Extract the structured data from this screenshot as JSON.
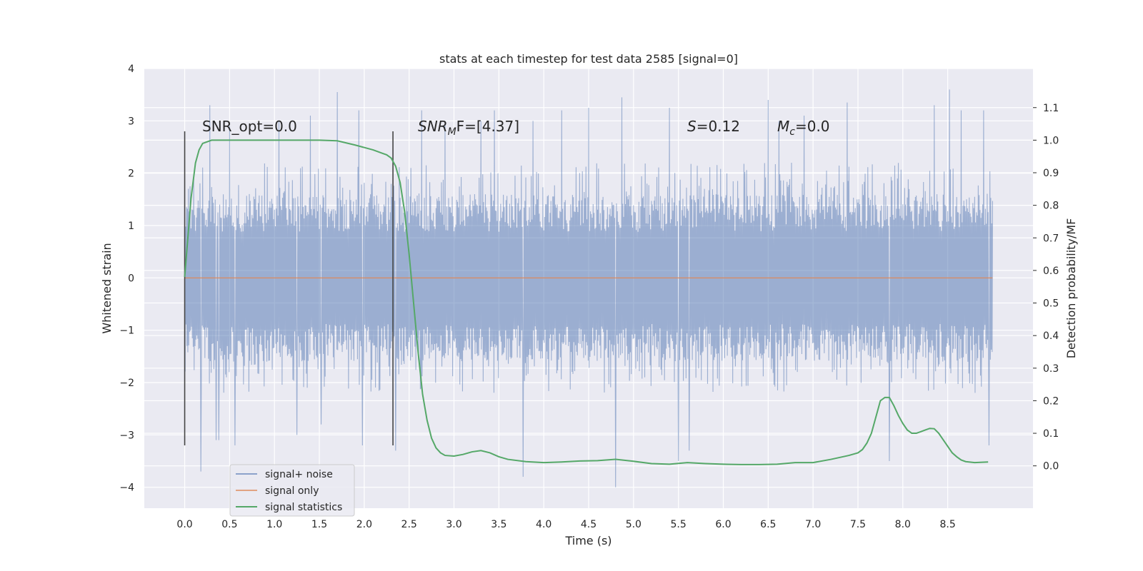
{
  "chart_data": {
    "type": "line",
    "title": "stats at each timestep for test data 2585 [signal=0]",
    "xlabel": "Time (s)",
    "ylabel_left": "Whitened strain",
    "ylabel_right": "Detection probability/MF",
    "xlim": [
      -0.45,
      9.45
    ],
    "ylim_left": [
      -4.4,
      4.0
    ],
    "ylim_right": [
      -0.13,
      1.22
    ],
    "xticks": [
      "0.0",
      "0.5",
      "1.0",
      "1.5",
      "2.0",
      "2.5",
      "3.0",
      "3.5",
      "4.0",
      "4.5",
      "5.0",
      "5.5",
      "6.0",
      "6.5",
      "7.0",
      "7.5",
      "8.0",
      "8.5"
    ],
    "yticks_left": [
      "4",
      "3",
      "2",
      "1",
      "0",
      "−1",
      "−2",
      "−3",
      "−4"
    ],
    "yticks_right": [
      "1.1",
      "1.0",
      "0.9",
      "0.8",
      "0.7",
      "0.6",
      "0.5",
      "0.4",
      "0.3",
      "0.2",
      "0.1",
      "0.0"
    ],
    "grid": true,
    "legend_position": "lower-left",
    "annotations": {
      "snr_opt": "SNR_opt=0.0",
      "snr_mf_main": "SNR",
      "snr_mf_sub": "M",
      "snr_mf_rest": "F=[4.37]",
      "s_main": "S",
      "s_rest": "=0.12",
      "mc_main": "M",
      "mc_sub": "c",
      "mc_rest": "=0.0"
    },
    "vertical_markers": [
      {
        "x": 0.0,
        "y_range": [
          -3.2,
          2.8
        ]
      },
      {
        "x": 2.32,
        "y_range": [
          -3.2,
          2.8
        ]
      }
    ],
    "series": [
      {
        "name": "signal+ noise",
        "axis": "left",
        "color": "#4c72b0",
        "t_range": [
          0.0,
          9.0
        ],
        "band_typical": [
          -1.6,
          1.6
        ],
        "band_dense": [
          -2.2,
          2.2
        ],
        "peaks": [
          [
            0.18,
            -3.7
          ],
          [
            0.28,
            3.3
          ],
          [
            0.35,
            -3.1
          ],
          [
            0.38,
            -3.1
          ],
          [
            0.5,
            2.9
          ],
          [
            0.56,
            -3.2
          ],
          [
            1.05,
            3.0
          ],
          [
            1.25,
            -3.0
          ],
          [
            1.4,
            3.1
          ],
          [
            1.52,
            -2.8
          ],
          [
            1.7,
            3.55
          ],
          [
            1.94,
            3.2
          ],
          [
            1.98,
            -3.2
          ],
          [
            2.35,
            -3.3
          ],
          [
            2.64,
            3.2
          ],
          [
            2.9,
            3.0
          ],
          [
            3.3,
            3.0
          ],
          [
            3.45,
            3.2
          ],
          [
            3.77,
            -3.8
          ],
          [
            3.88,
            3.0
          ],
          [
            4.2,
            3.2
          ],
          [
            4.5,
            3.25
          ],
          [
            4.8,
            -4.0
          ],
          [
            4.87,
            3.45
          ],
          [
            5.4,
            3.25
          ],
          [
            5.5,
            -3.5
          ],
          [
            5.62,
            -3.3
          ],
          [
            6.5,
            3.4
          ],
          [
            6.62,
            3.0
          ],
          [
            6.9,
            3.1
          ],
          [
            7.38,
            3.35
          ],
          [
            7.85,
            -3.5
          ],
          [
            8.35,
            3.3
          ],
          [
            8.52,
            3.6
          ],
          [
            8.65,
            3.2
          ],
          [
            8.9,
            3.2
          ],
          [
            8.96,
            -3.2
          ]
        ]
      },
      {
        "name": "signal only",
        "axis": "left",
        "color": "#dd8452",
        "x": [
          0.0,
          9.0
        ],
        "y": [
          0.0,
          0.0
        ]
      },
      {
        "name": "signal statistics",
        "axis": "right",
        "color": "#55a868",
        "x": [
          0.0,
          0.07,
          0.12,
          0.16,
          0.2,
          0.3,
          0.5,
          1.0,
          1.5,
          1.7,
          1.9,
          2.1,
          2.2,
          2.25,
          2.3,
          2.35,
          2.4,
          2.45,
          2.5,
          2.55,
          2.6,
          2.65,
          2.7,
          2.75,
          2.8,
          2.85,
          2.9,
          3.0,
          3.1,
          3.2,
          3.3,
          3.4,
          3.5,
          3.6,
          3.8,
          4.0,
          4.2,
          4.4,
          4.6,
          4.8,
          5.0,
          5.2,
          5.4,
          5.6,
          5.8,
          6.0,
          6.2,
          6.4,
          6.6,
          6.8,
          7.0,
          7.2,
          7.4,
          7.5,
          7.55,
          7.6,
          7.65,
          7.7,
          7.75,
          7.8,
          7.85,
          7.9,
          7.95,
          8.0,
          8.05,
          8.1,
          8.15,
          8.2,
          8.25,
          8.3,
          8.35,
          8.4,
          8.45,
          8.5,
          8.55,
          8.6,
          8.65,
          8.7,
          8.8,
          8.95
        ],
        "y": [
          0.58,
          0.82,
          0.93,
          0.97,
          0.99,
          1.0,
          1.0,
          1.0,
          1.0,
          0.998,
          0.985,
          0.97,
          0.96,
          0.955,
          0.945,
          0.92,
          0.87,
          0.78,
          0.65,
          0.5,
          0.35,
          0.22,
          0.14,
          0.085,
          0.055,
          0.04,
          0.032,
          0.03,
          0.035,
          0.043,
          0.047,
          0.04,
          0.028,
          0.02,
          0.013,
          0.01,
          0.012,
          0.015,
          0.016,
          0.02,
          0.014,
          0.007,
          0.005,
          0.01,
          0.007,
          0.005,
          0.004,
          0.004,
          0.005,
          0.01,
          0.01,
          0.02,
          0.032,
          0.04,
          0.05,
          0.07,
          0.1,
          0.15,
          0.2,
          0.21,
          0.21,
          0.185,
          0.155,
          0.13,
          0.11,
          0.1,
          0.1,
          0.105,
          0.11,
          0.115,
          0.114,
          0.1,
          0.08,
          0.06,
          0.04,
          0.028,
          0.018,
          0.013,
          0.01,
          0.012
        ]
      }
    ]
  }
}
